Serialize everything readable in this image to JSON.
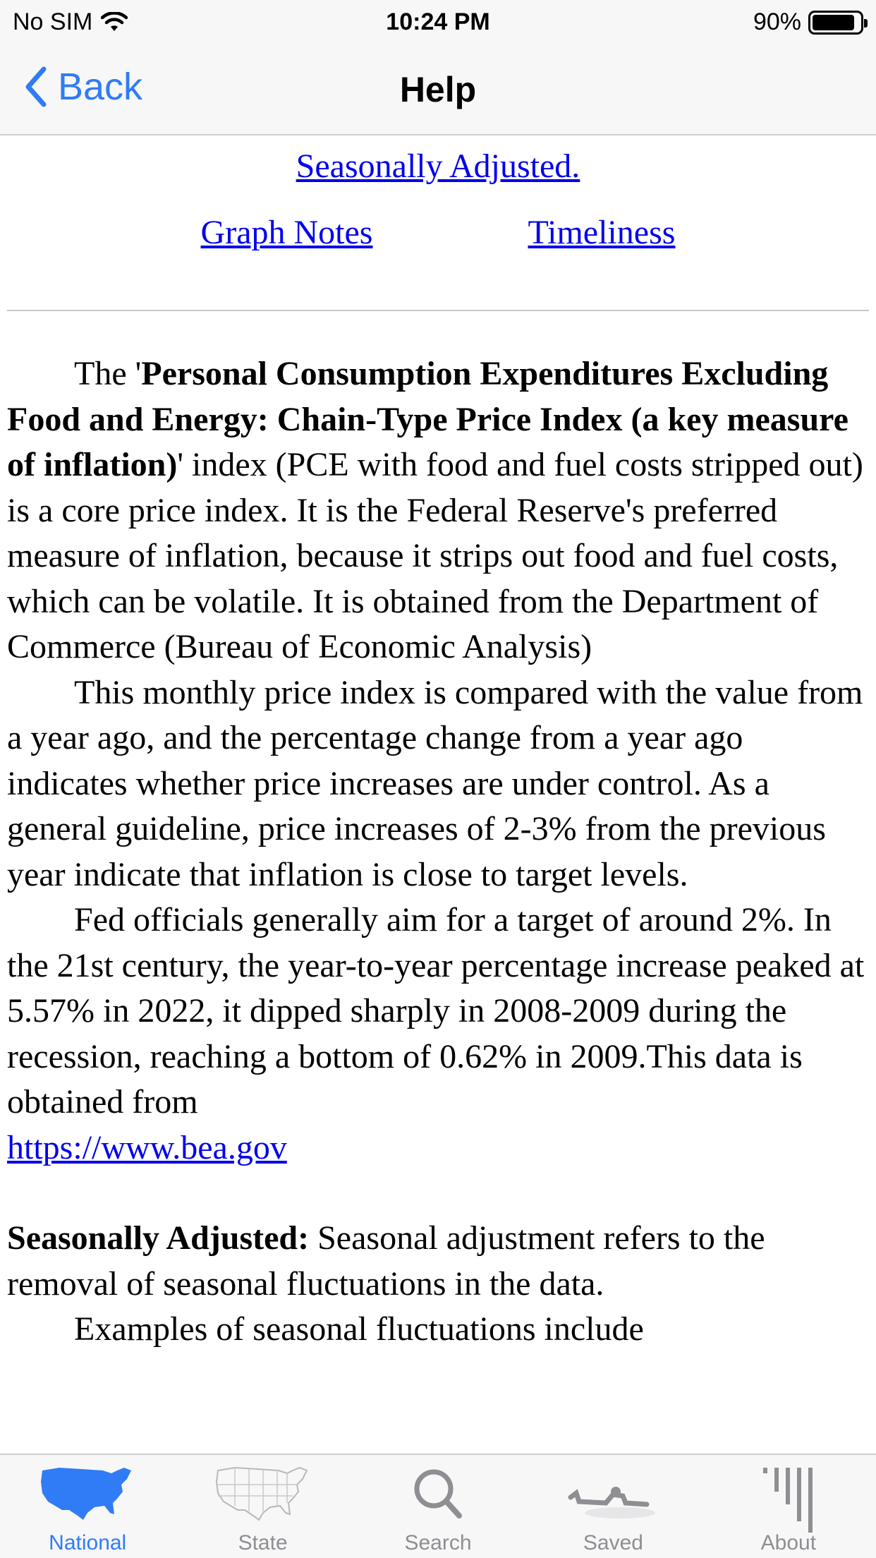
{
  "status": {
    "carrier": "No SIM",
    "time": "10:24 PM",
    "battery": "90%",
    "battery_level": 0.9
  },
  "nav": {
    "back_label": "Back",
    "title": "Help"
  },
  "content": {
    "link_seasonal": "Seasonally Adjusted.",
    "link_graph_notes": "Graph Notes",
    "link_timeliness": "Timeliness",
    "p1_intro": "The '",
    "p1_bold": "Personal Consumption Expenditures Excluding Food and Energy: Chain-Type Price Index (a key measure of inflation)",
    "p1_rest": "' index (PCE with food and fuel costs stripped out) is a core price index. It is the Federal Reserve's preferred measure of inflation, because it strips out food and fuel costs, which can be volatile. It is obtained from the Department of Commerce (Bureau of Economic Analysis)",
    "p2": "This monthly price index is compared with the value from a year ago, and the percentage change from a year ago indicates whether price increases are under control. As a general guideline, price increases of 2-3% from the previous year indicate that inflation is close to target levels.",
    "p3": "Fed officials generally aim for a target of around 2%. In the 21st century, the year-to-year percentage increase peaked at 5.57% in 2022, it dipped sharply in 2008-2009 during the recession, reaching a bottom of 0.62% in 2009.This data is obtained from",
    "source_link": "https://www.bea.gov",
    "sa_bold": "Seasonally Adjusted:",
    "sa_text": " Seasonal adjustment refers to the removal of seasonal fluctuations in the data.",
    "p4": "Examples of seasonal fluctuations include"
  },
  "tabs": [
    {
      "label": "National",
      "icon": "us-map-filled-icon",
      "active": true
    },
    {
      "label": "State",
      "icon": "us-states-map-icon",
      "active": false
    },
    {
      "label": "Search",
      "icon": "magnifier-icon",
      "active": false
    },
    {
      "label": "Saved",
      "icon": "saved-icon",
      "active": false
    },
    {
      "label": "About",
      "icon": "about-bars-icon",
      "active": false
    }
  ],
  "colors": {
    "accent": "#2f7cf6",
    "link": "#0000ee",
    "tab_inactive": "#8e8e93"
  }
}
